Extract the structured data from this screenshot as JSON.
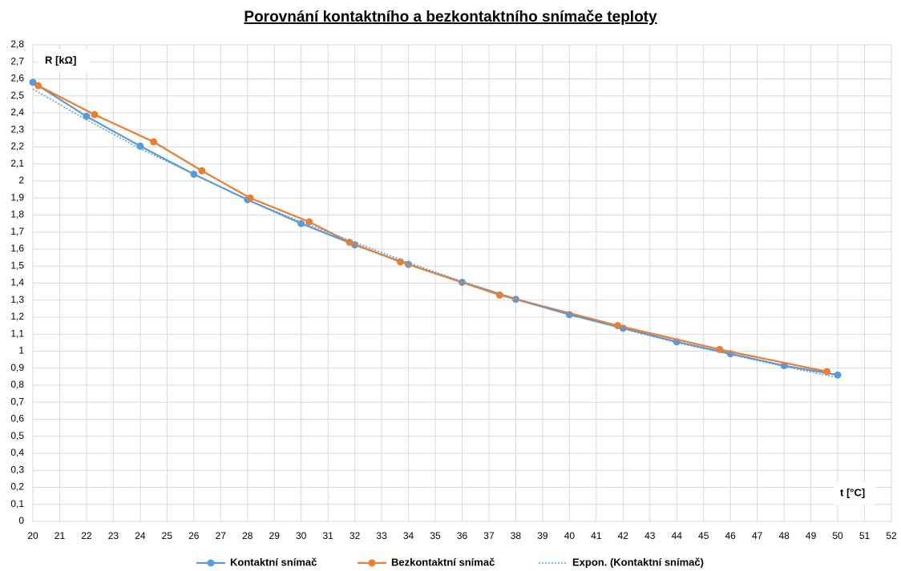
{
  "chart_data": {
    "type": "line",
    "title": "Porovnání kontaktního a bezkontaktního snímače teploty",
    "y_label": "R [kΩ]",
    "x_label": "t [°C]",
    "xlim": [
      20,
      52
    ],
    "xticks": [
      20,
      21,
      22,
      23,
      24,
      25,
      26,
      27,
      28,
      29,
      30,
      31,
      32,
      33,
      34,
      35,
      36,
      37,
      38,
      39,
      40,
      41,
      42,
      43,
      44,
      45,
      46,
      47,
      48,
      49,
      50,
      51,
      52
    ],
    "ylim": [
      0,
      2.8
    ],
    "yticks": [
      0,
      {
        "value": 0.1,
        "label": "0,1"
      },
      {
        "value": 0.2,
        "label": "0,2"
      },
      {
        "value": 0.3,
        "label": "0,3"
      },
      {
        "value": 0.4,
        "label": "0,4"
      },
      {
        "value": 0.5,
        "label": "0,5"
      },
      {
        "value": 0.6,
        "label": "0,6"
      },
      {
        "value": 0.7,
        "label": "0,7"
      },
      {
        "value": 0.8,
        "label": "0,8"
      },
      {
        "value": 0.9,
        "label": "0,9"
      },
      1,
      {
        "value": 1.1,
        "label": "1,1"
      },
      {
        "value": 1.2,
        "label": "1,2"
      },
      {
        "value": 1.3,
        "label": "1,3"
      },
      {
        "value": 1.4,
        "label": "1,4"
      },
      {
        "value": 1.5,
        "label": "1,5"
      },
      {
        "value": 1.6,
        "label": "1,6"
      },
      {
        "value": 1.7,
        "label": "1,7"
      },
      {
        "value": 1.8,
        "label": "1,8"
      },
      {
        "value": 1.9,
        "label": "1,9"
      },
      2,
      {
        "value": 2.1,
        "label": "2,1"
      },
      {
        "value": 2.2,
        "label": "2,2"
      },
      {
        "value": 2.3,
        "label": "2,3"
      },
      {
        "value": 2.4,
        "label": "2,4"
      },
      {
        "value": 2.5,
        "label": "2,5"
      },
      {
        "value": 2.6,
        "label": "2,6"
      },
      {
        "value": 2.7,
        "label": "2,7"
      },
      {
        "value": 2.8,
        "label": "2,8"
      }
    ],
    "grid": true,
    "legend": "bottom",
    "series": [
      {
        "name": "Kontaktní snímač",
        "color": "#5b9bd5",
        "line_style": "solid",
        "markers": true,
        "x": [
          20,
          22,
          24,
          26,
          28,
          30,
          32,
          34,
          36,
          38,
          40,
          42,
          44,
          46,
          48,
          50
        ],
        "values": [
          2.58,
          2.38,
          2.205,
          2.04,
          1.89,
          1.75,
          1.625,
          1.51,
          1.405,
          1.305,
          1.215,
          1.135,
          1.055,
          0.985,
          0.915,
          0.86
        ]
      },
      {
        "name": "Bezkontaktní snímač",
        "color": "#ed7d31",
        "line_style": "solid",
        "markers": true,
        "x": [
          20.2,
          22.3,
          24.5,
          26.3,
          28.1,
          30.3,
          31.8,
          33.7,
          37.4,
          41.8,
          45.6,
          49.6
        ],
        "values": [
          2.56,
          2.39,
          2.23,
          2.06,
          1.9,
          1.76,
          1.64,
          1.525,
          1.33,
          1.15,
          1.01,
          0.88
        ]
      },
      {
        "name": "Expon. (Kontaktní snímač)",
        "color": "#5b9bd5",
        "line_style": "dotted",
        "markers": false,
        "x": [
          20,
          22,
          24,
          26,
          28,
          30,
          32,
          34,
          36,
          38,
          40,
          42,
          44,
          46,
          48,
          50
        ],
        "values": [
          2.54,
          2.36,
          2.19,
          2.04,
          1.89,
          1.76,
          1.64,
          1.52,
          1.41,
          1.31,
          1.22,
          1.13,
          1.05,
          0.98,
          0.91,
          0.845
        ]
      }
    ]
  }
}
